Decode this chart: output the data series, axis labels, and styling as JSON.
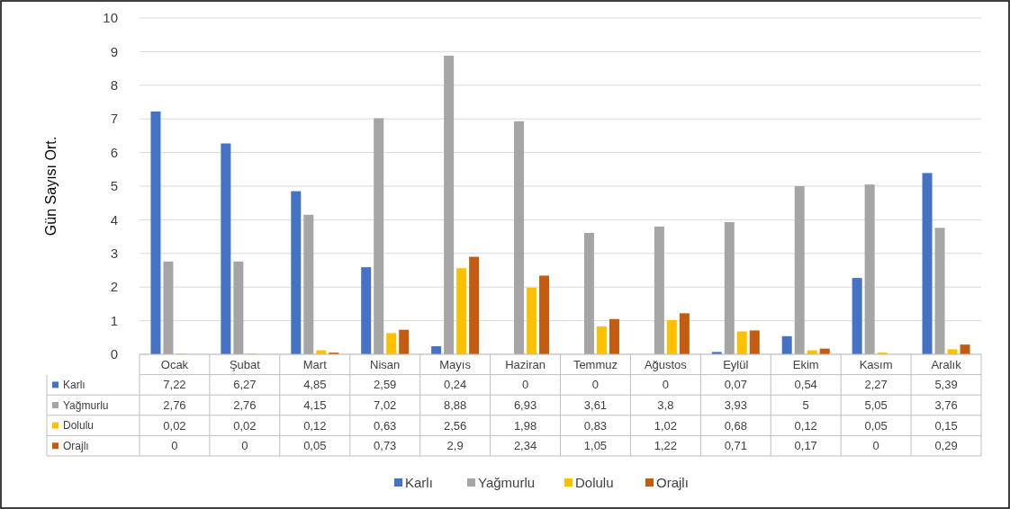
{
  "chart_data": {
    "type": "bar",
    "ylabel": "Gün Sayısı Ort.",
    "categories": [
      "Ocak",
      "Şubat",
      "Mart",
      "Nisan",
      "Mayıs",
      "Haziran",
      "Temmuz",
      "Ağustos",
      "Eylül",
      "Ekim",
      "Kasım",
      "Aralık"
    ],
    "series": [
      {
        "name": "Karlı",
        "color": "#4472c4",
        "values": [
          7.22,
          6.27,
          4.85,
          2.59,
          0.24,
          0,
          0,
          0,
          0.07,
          0.54,
          2.27,
          5.39
        ],
        "value_labels": [
          "7,22",
          "6,27",
          "4,85",
          "2,59",
          "0,24",
          "0",
          "0",
          "0",
          "0,07",
          "0,54",
          "2,27",
          "5,39"
        ]
      },
      {
        "name": "Yağmurlu",
        "color": "#a5a5a5",
        "values": [
          2.76,
          2.76,
          4.15,
          7.02,
          8.88,
          6.93,
          3.61,
          3.8,
          3.93,
          5,
          5.05,
          3.76
        ],
        "value_labels": [
          "2,76",
          "2,76",
          "4,15",
          "7,02",
          "8,88",
          "6,93",
          "3,61",
          "3,8",
          "3,93",
          "5",
          "5,05",
          "3,76"
        ]
      },
      {
        "name": "Dolulu",
        "color": "#ffc000",
        "values": [
          0.02,
          0.02,
          0.12,
          0.63,
          2.56,
          1.98,
          0.83,
          1.02,
          0.68,
          0.12,
          0.05,
          0.15
        ],
        "value_labels": [
          "0,02",
          "0,02",
          "0,12",
          "0,63",
          "2,56",
          "1,98",
          "0,83",
          "1,02",
          "0,68",
          "0,12",
          "0,05",
          "0,15"
        ]
      },
      {
        "name": "Orajlı",
        "color": "#c55a11",
        "values": [
          0,
          0,
          0.05,
          0.73,
          2.9,
          2.34,
          1.05,
          1.22,
          0.71,
          0.17,
          0,
          0.29
        ],
        "value_labels": [
          "0",
          "0",
          "0,05",
          "0,73",
          "2,9",
          "2,34",
          "1,05",
          "1,22",
          "0,71",
          "0,17",
          "0",
          "0,29"
        ]
      }
    ],
    "ylim": [
      0,
      10
    ],
    "yticks": [
      0,
      1,
      2,
      3,
      4,
      5,
      6,
      7,
      8,
      9,
      10
    ],
    "grid": "y",
    "legend": "bottom"
  }
}
